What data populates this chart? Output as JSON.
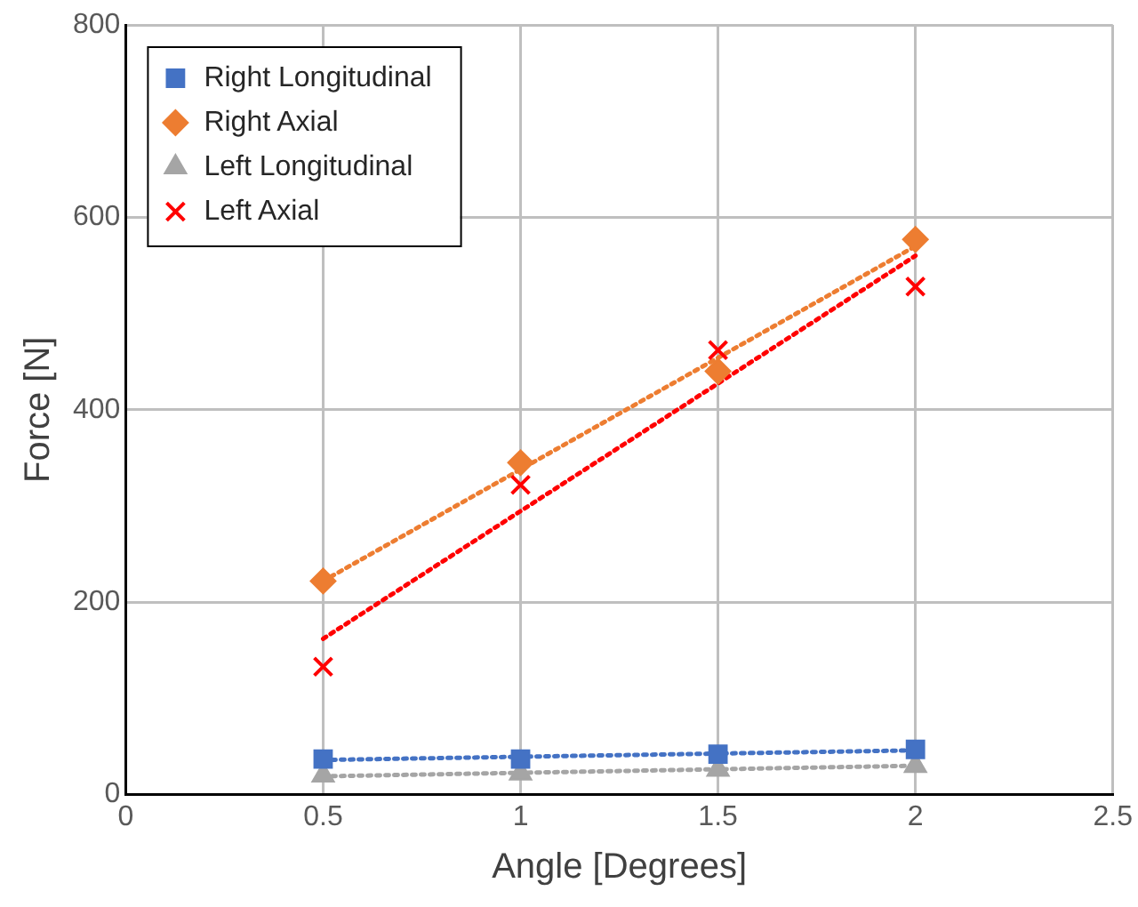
{
  "chart_data": {
    "type": "scatter",
    "xlabel": "Angle [Degrees]",
    "ylabel": "Force [N]",
    "xlim": [
      0,
      2.5
    ],
    "xticks": [
      0,
      0.5,
      1,
      1.5,
      2,
      2.5
    ],
    "ylim": [
      0,
      800
    ],
    "yticks": [
      0,
      200,
      400,
      600,
      800
    ],
    "grid": true,
    "legend": "top left",
    "series": [
      {
        "name": "Right Longitudinal",
        "color": "#4472c4",
        "marker": "square",
        "x": [
          0.5,
          1,
          1.5,
          2
        ],
        "values": [
          37,
          37,
          42,
          47
        ]
      },
      {
        "name": "Right Axial",
        "color": "#ed7d31",
        "marker": "diamond",
        "x": [
          0.5,
          1,
          1.5,
          2
        ],
        "values": [
          222,
          345,
          440,
          577
        ]
      },
      {
        "name": "Left Longitudinal",
        "color": "#a5a5a5",
        "marker": "triangle",
        "x": [
          0.5,
          1,
          1.5,
          2
        ],
        "values": [
          20,
          22,
          26,
          30
        ]
      },
      {
        "name": "Left Axial",
        "color": "#ff0000",
        "marker": "cross",
        "x": [
          0.5,
          1,
          1.5,
          2
        ],
        "values": [
          133,
          322,
          462,
          528
        ]
      },
      {
        "type": "line",
        "color": "#4472c4",
        "marker": "none",
        "line_style": "dotted",
        "x": [
          0.5,
          2
        ],
        "values": [
          36,
          46
        ]
      },
      {
        "type": "line",
        "color": "#ed7d31",
        "marker": "none",
        "line_style": "dotted",
        "x": [
          0.5,
          2
        ],
        "values": [
          222,
          570
        ]
      },
      {
        "type": "line",
        "color": "#a5a5a5",
        "marker": "none",
        "line_style": "dotted",
        "x": [
          0.5,
          2
        ],
        "values": [
          19,
          30
        ]
      },
      {
        "type": "line",
        "color": "#ff0000",
        "marker": "none",
        "line_style": "dotted",
        "x": [
          0.5,
          2
        ],
        "values": [
          162,
          560
        ]
      }
    ]
  }
}
